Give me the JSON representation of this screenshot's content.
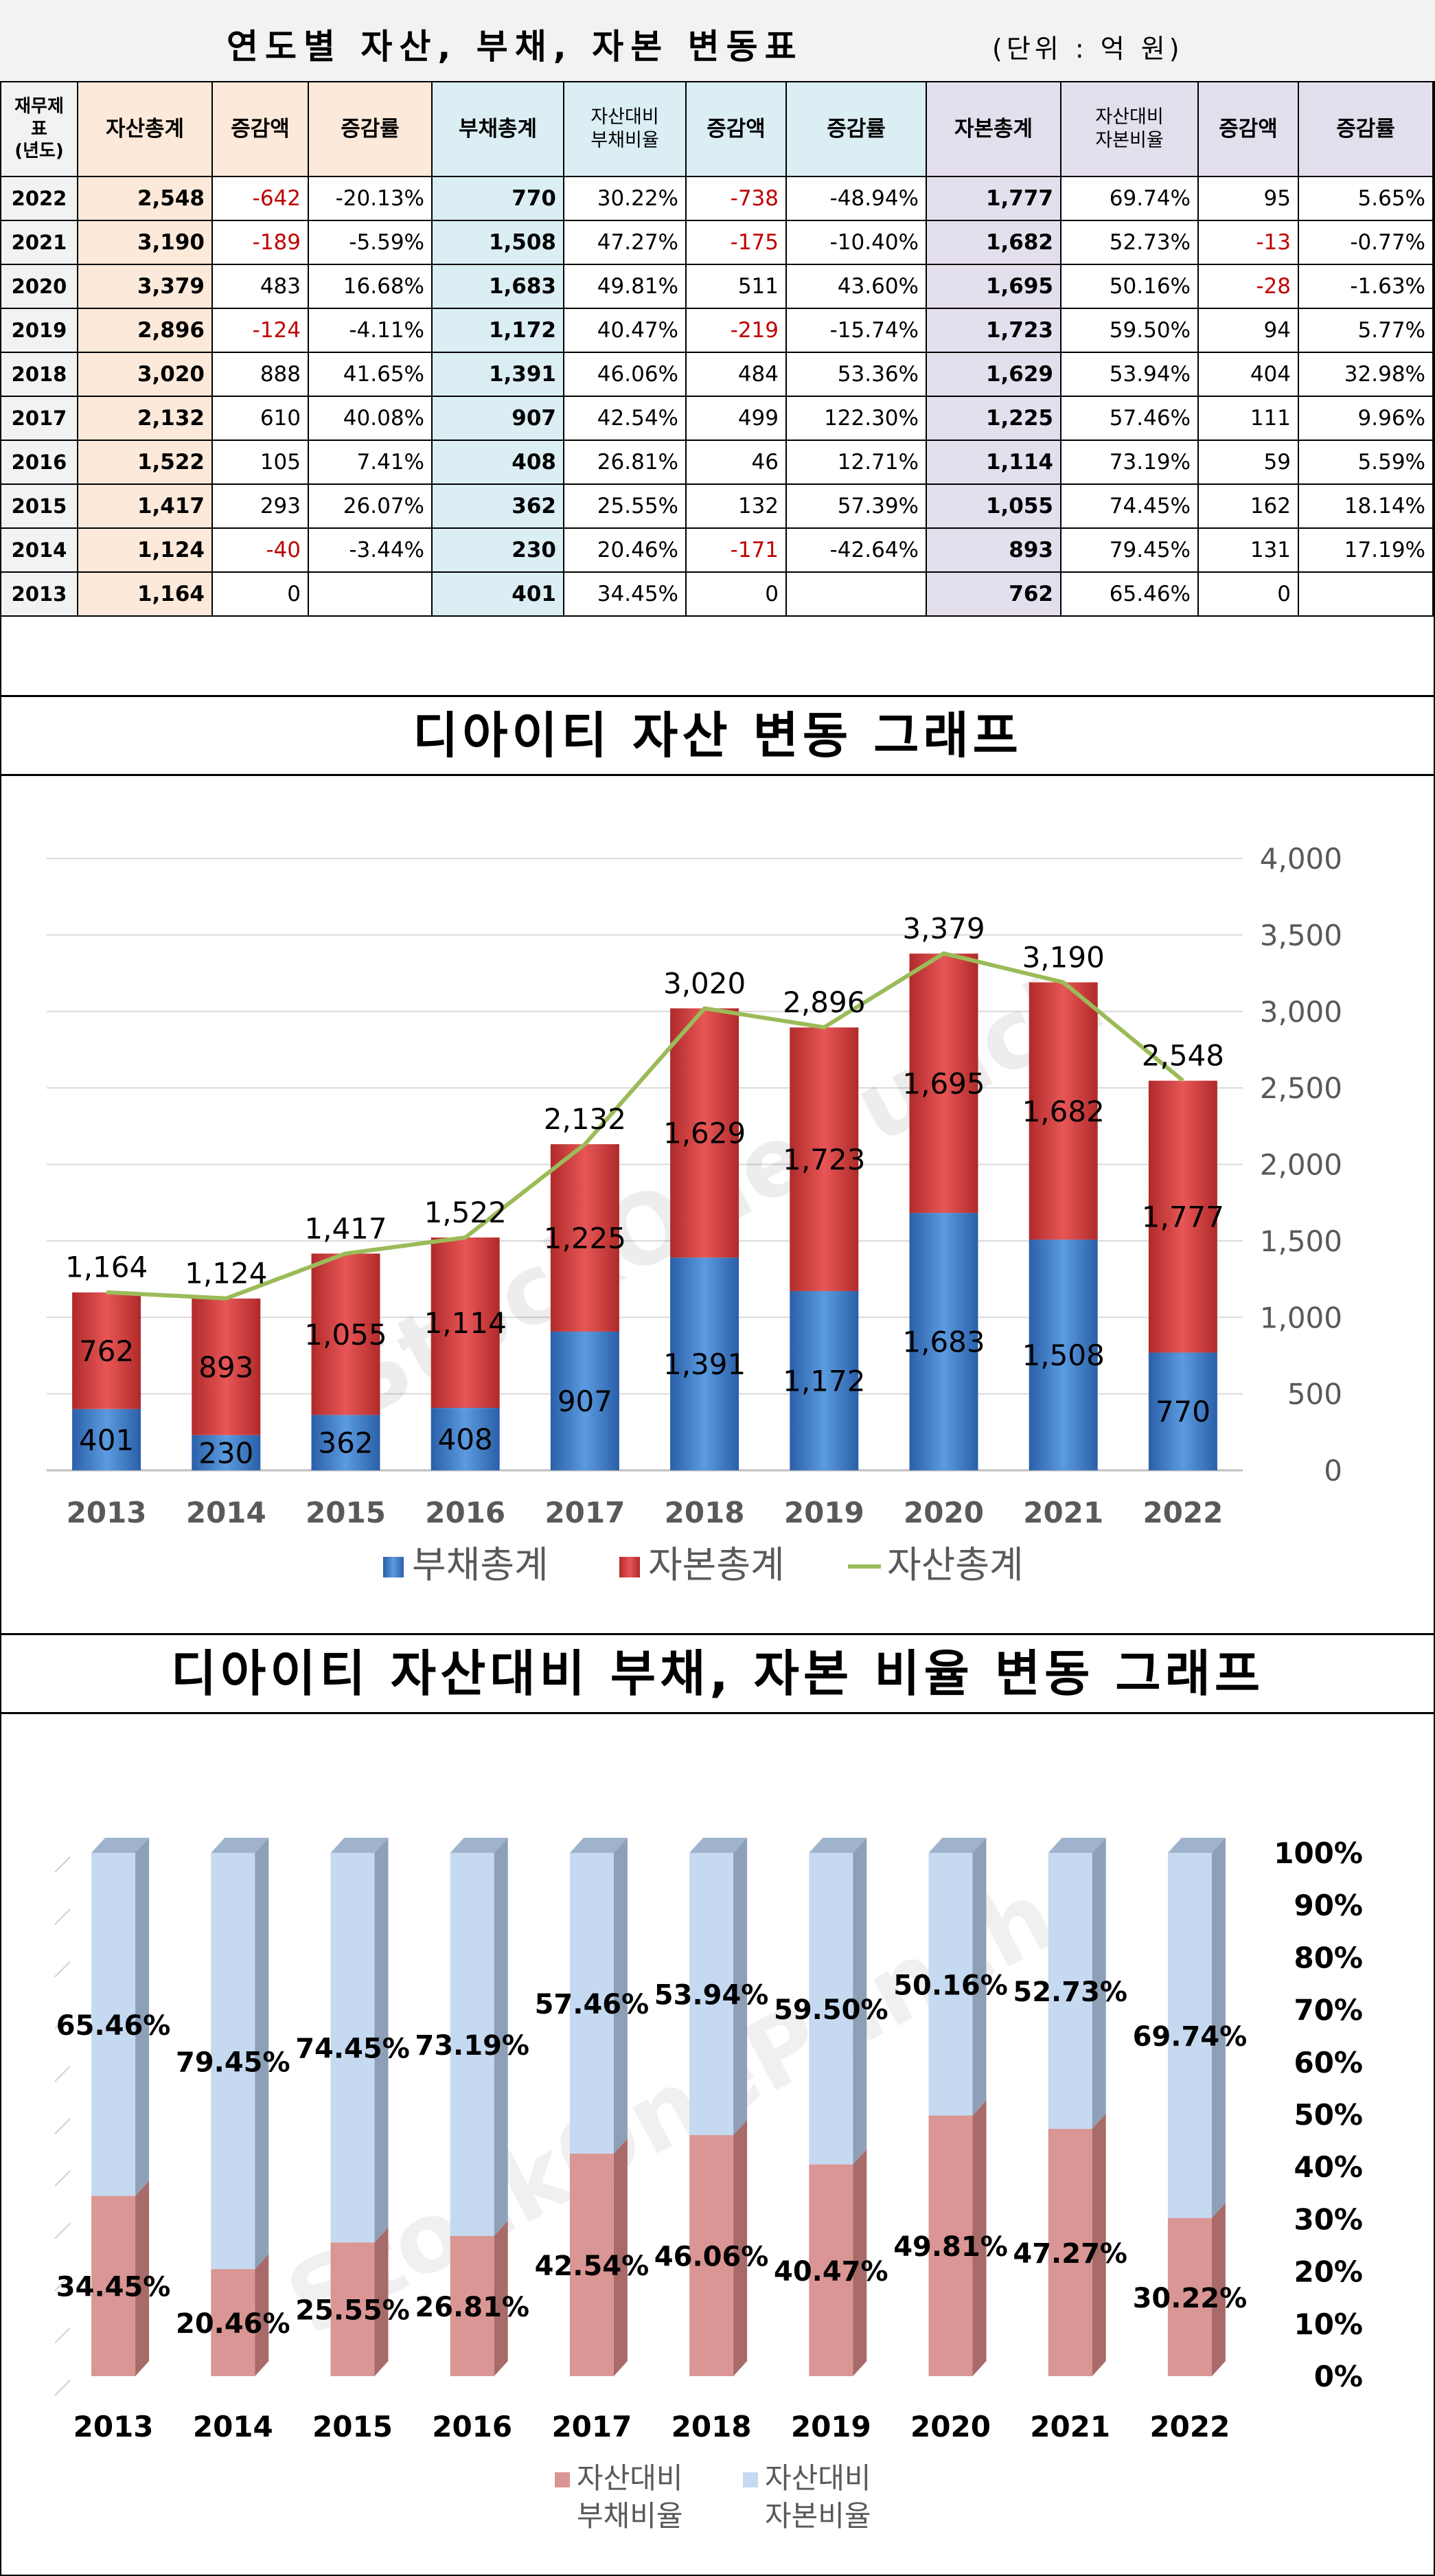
{
  "table": {
    "title": "연도별 자산, 부채, 자본 변동표",
    "unit": "(단위 : 억 원)",
    "headers": {
      "year": [
        "재무제",
        "표",
        "(년도)"
      ],
      "asset_total": "자산총계",
      "asset_change": "증감액",
      "asset_rate": "증감률",
      "debt_total": "부채총계",
      "debt_ratio": [
        "자산대비",
        "부채비율"
      ],
      "debt_change": "증감액",
      "debt_rate": "증감률",
      "equity_total": "자본총계",
      "equity_ratio": [
        "자산대비",
        "자본비율"
      ],
      "equity_change": "증감액",
      "equity_rate": "증감률"
    },
    "rows": [
      {
        "year": "2022",
        "asset_total": "2,548",
        "asset_change": "-642",
        "asset_rate": "-20.13%",
        "debt_total": "770",
        "debt_ratio": "30.22%",
        "debt_change": "-738",
        "debt_rate": "-48.94%",
        "equity_total": "1,777",
        "equity_ratio": "69.74%",
        "equity_change": "95",
        "equity_rate": "5.65%"
      },
      {
        "year": "2021",
        "asset_total": "3,190",
        "asset_change": "-189",
        "asset_rate": "-5.59%",
        "debt_total": "1,508",
        "debt_ratio": "47.27%",
        "debt_change": "-175",
        "debt_rate": "-10.40%",
        "equity_total": "1,682",
        "equity_ratio": "52.73%",
        "equity_change": "-13",
        "equity_rate": "-0.77%"
      },
      {
        "year": "2020",
        "asset_total": "3,379",
        "asset_change": "483",
        "asset_rate": "16.68%",
        "debt_total": "1,683",
        "debt_ratio": "49.81%",
        "debt_change": "511",
        "debt_rate": "43.60%",
        "equity_total": "1,695",
        "equity_ratio": "50.16%",
        "equity_change": "-28",
        "equity_rate": "-1.63%"
      },
      {
        "year": "2019",
        "asset_total": "2,896",
        "asset_change": "-124",
        "asset_rate": "-4.11%",
        "debt_total": "1,172",
        "debt_ratio": "40.47%",
        "debt_change": "-219",
        "debt_rate": "-15.74%",
        "equity_total": "1,723",
        "equity_ratio": "59.50%",
        "equity_change": "94",
        "equity_rate": "5.77%"
      },
      {
        "year": "2018",
        "asset_total": "3,020",
        "asset_change": "888",
        "asset_rate": "41.65%",
        "debt_total": "1,391",
        "debt_ratio": "46.06%",
        "debt_change": "484",
        "debt_rate": "53.36%",
        "equity_total": "1,629",
        "equity_ratio": "53.94%",
        "equity_change": "404",
        "equity_rate": "32.98%"
      },
      {
        "year": "2017",
        "asset_total": "2,132",
        "asset_change": "610",
        "asset_rate": "40.08%",
        "debt_total": "907",
        "debt_ratio": "42.54%",
        "debt_change": "499",
        "debt_rate": "122.30%",
        "equity_total": "1,225",
        "equity_ratio": "57.46%",
        "equity_change": "111",
        "equity_rate": "9.96%"
      },
      {
        "year": "2016",
        "asset_total": "1,522",
        "asset_change": "105",
        "asset_rate": "7.41%",
        "debt_total": "408",
        "debt_ratio": "26.81%",
        "debt_change": "46",
        "debt_rate": "12.71%",
        "equity_total": "1,114",
        "equity_ratio": "73.19%",
        "equity_change": "59",
        "equity_rate": "5.59%"
      },
      {
        "year": "2015",
        "asset_total": "1,417",
        "asset_change": "293",
        "asset_rate": "26.07%",
        "debt_total": "362",
        "debt_ratio": "25.55%",
        "debt_change": "132",
        "debt_rate": "57.39%",
        "equity_total": "1,055",
        "equity_ratio": "74.45%",
        "equity_change": "162",
        "equity_rate": "18.14%"
      },
      {
        "year": "2014",
        "asset_total": "1,124",
        "asset_change": "-40",
        "asset_rate": "-3.44%",
        "debt_total": "230",
        "debt_ratio": "20.46%",
        "debt_change": "-171",
        "debt_rate": "-42.64%",
        "equity_total": "893",
        "equity_ratio": "79.45%",
        "equity_change": "131",
        "equity_rate": "17.19%"
      },
      {
        "year": "2013",
        "asset_total": "1,164",
        "asset_change": "0",
        "asset_rate": "",
        "debt_total": "401",
        "debt_ratio": "34.45%",
        "debt_change": "0",
        "debt_rate": "",
        "equity_total": "762",
        "equity_ratio": "65.46%",
        "equity_change": "0",
        "equity_rate": ""
      }
    ]
  },
  "chart_data": [
    {
      "type": "bar",
      "subtype": "stacked-bar-with-line",
      "title": "디아이티 자산 변동 그래프",
      "categories": [
        "2013",
        "2014",
        "2015",
        "2016",
        "2017",
        "2018",
        "2019",
        "2020",
        "2021",
        "2022"
      ],
      "series": [
        {
          "name": "부채총계",
          "kind": "bar",
          "color": "#3c78c8",
          "values": [
            401,
            230,
            362,
            408,
            907,
            1391,
            1172,
            1683,
            1508,
            770
          ]
        },
        {
          "name": "자본총계",
          "kind": "bar",
          "color": "#d43c3c",
          "values": [
            762,
            893,
            1055,
            1114,
            1225,
            1629,
            1723,
            1695,
            1682,
            1777
          ]
        },
        {
          "name": "자산총계",
          "kind": "line",
          "color": "#9bbb59",
          "values": [
            1164,
            1124,
            1417,
            1522,
            2132,
            3020,
            2896,
            3379,
            3190,
            2548
          ]
        }
      ],
      "ylim": [
        0,
        4000
      ],
      "yticks": [
        "0",
        "500",
        "1,000",
        "1,500",
        "2,000",
        "2,500",
        "3,000",
        "3,500",
        "4,000"
      ],
      "grid": true,
      "y_axis_position": "right",
      "legend": "bottom",
      "watermark": "StockOnePunch"
    },
    {
      "type": "bar",
      "subtype": "100%-stacked-3d-bar",
      "title": "디아이티 자산대비 부채, 자본 비율 변동 그래프",
      "categories": [
        "2013",
        "2014",
        "2015",
        "2016",
        "2017",
        "2018",
        "2019",
        "2020",
        "2021",
        "2022"
      ],
      "series": [
        {
          "name": "자산대비 부채비율",
          "color": "#da9694",
          "values": [
            34.45,
            20.46,
            25.55,
            26.81,
            42.54,
            46.06,
            40.47,
            49.81,
            47.27,
            30.22
          ],
          "labels": [
            "34.45%",
            "20.46%",
            "25.55%",
            "26.81%",
            "42.54%",
            "46.06%",
            "40.47%",
            "49.81%",
            "47.27%",
            "30.22%"
          ]
        },
        {
          "name": "자산대비 자본비율",
          "color": "#c5d9f1",
          "values": [
            65.46,
            79.45,
            74.45,
            73.19,
            57.46,
            53.94,
            59.5,
            50.16,
            52.73,
            69.74
          ],
          "labels": [
            "65.46%",
            "79.45%",
            "74.45%",
            "73.19%",
            "57.46%",
            "53.94%",
            "59.50%",
            "50.16%",
            "52.73%",
            "69.74%"
          ]
        }
      ],
      "legend_lines": [
        [
          "자산대비",
          "부채비율"
        ],
        [
          "자산대비",
          "자본비율"
        ]
      ],
      "ylim": [
        0,
        100
      ],
      "yticks": [
        "0%",
        "10%",
        "20%",
        "30%",
        "40%",
        "50%",
        "60%",
        "70%",
        "80%",
        "90%",
        "100%"
      ],
      "y_axis_position": "right",
      "legend": "bottom",
      "watermark": "StockOnePunch"
    }
  ]
}
